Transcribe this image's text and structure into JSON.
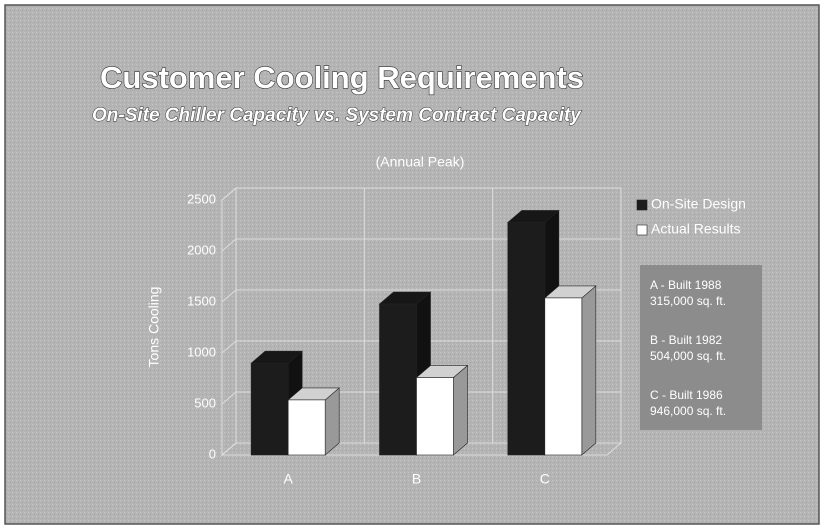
{
  "chart_data": {
    "type": "bar3d",
    "title": "Customer Cooling Requirements",
    "subtitle": "On-Site Chiller Capacity vs. System Contract Capacity",
    "caption": "(Annual Peak)",
    "y_label": "Tons Cooling",
    "categories": [
      "A",
      "B",
      "C"
    ],
    "series": [
      {
        "name": "On-Site Design",
        "color": "#1c1c1c",
        "values": [
          900,
          1480,
          2280
        ]
      },
      {
        "name": "Actual Results",
        "color": "#ffffff",
        "values": [
          540,
          760,
          1540
        ]
      }
    ],
    "ylim": [
      0,
      2500
    ],
    "yticks": [
      0,
      500,
      1000,
      1500,
      2000,
      2500
    ],
    "grid": true,
    "legend": "right",
    "annotations": [
      "A - Built 1988",
      "315,000 sq. ft.",
      "B - Built 1982",
      "504,000 sq. ft.",
      "C - Built 1986",
      "946,000 sq. ft."
    ]
  }
}
